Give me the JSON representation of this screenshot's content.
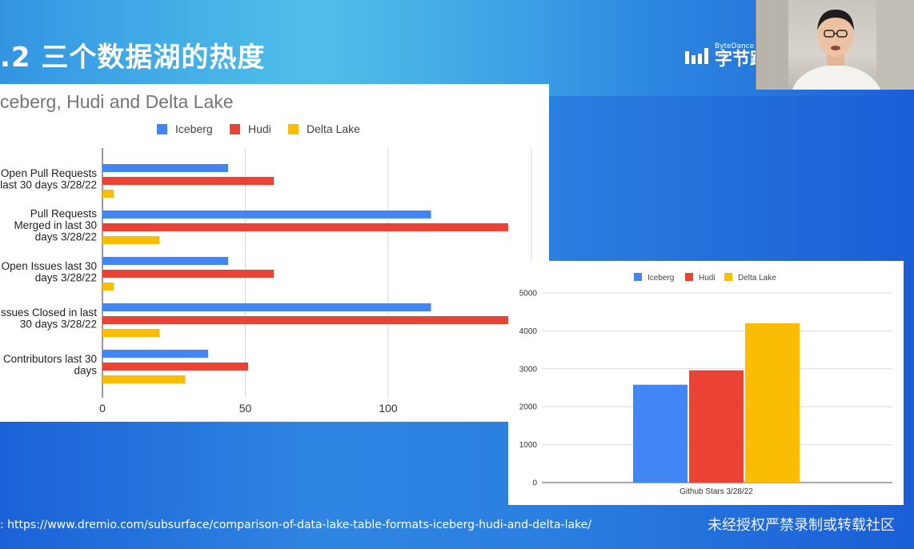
{
  "slide": {
    "title": ".2  三个数据湖的热度",
    "logo_small": "ByteDance",
    "logo_big": "字节跳",
    "bottom_link": ": https://www.dremio.com/subsurface/comparison-of-data-lake-table-formats-iceberg-hudi-and-delta-lake/",
    "watermark": "未经授权严禁录制或转载社区"
  },
  "colors": {
    "iceberg": "#4285f4",
    "hudi": "#ea4335",
    "delta": "#fbbc04"
  },
  "chart_data": [
    {
      "type": "bar",
      "orientation": "horizontal",
      "title": "ceberg, Hudi and Delta Lake",
      "legend": [
        "Iceberg",
        "Hudi",
        "Delta Lake"
      ],
      "legend_position": "top",
      "categories": [
        [
          "Open Pull Requests",
          "last 30 days 3/28/22"
        ],
        [
          "Pull Requests",
          "Merged in last 30",
          "days 3/28/22"
        ],
        [
          "Open Issues last 30",
          "days 3/28/22"
        ],
        [
          "ssues Closed in last",
          "30 days 3/28/22"
        ],
        [
          "Contributors last 30",
          "days"
        ]
      ],
      "series": [
        {
          "name": "Iceberg",
          "values": [
            44,
            115,
            44,
            115,
            37
          ]
        },
        {
          "name": "Hudi",
          "values": [
            60,
            142,
            60,
            142,
            51
          ]
        },
        {
          "name": "Delta Lake",
          "values": [
            4,
            20,
            4,
            20,
            29
          ]
        }
      ],
      "xticks": [
        0,
        50,
        100
      ],
      "xlim": [
        0,
        150
      ],
      "grid": true
    },
    {
      "type": "bar",
      "orientation": "vertical",
      "legend": [
        "Iceberg",
        "Hudi",
        "Delta Lake"
      ],
      "legend_position": "top",
      "categories": [
        "Github Stars 3/28/22"
      ],
      "series": [
        {
          "name": "Iceberg",
          "values": [
            2580
          ]
        },
        {
          "name": "Hudi",
          "values": [
            2960
          ]
        },
        {
          "name": "Delta Lake",
          "values": [
            4200
          ]
        }
      ],
      "yticks": [
        0,
        1000,
        2000,
        3000,
        4000,
        5000
      ],
      "ylim": [
        0,
        5000
      ],
      "grid": true
    }
  ]
}
